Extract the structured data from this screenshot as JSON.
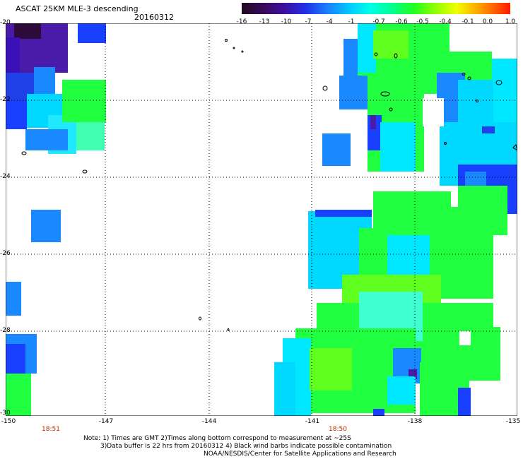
{
  "header": {
    "title": "ASCAT 25KM MLE-3 descending",
    "date": "20160312"
  },
  "colorbar": {
    "labels": [
      "-16",
      "-13",
      "-10",
      "-7",
      "-4",
      "-1",
      "-0.7",
      "-0.6",
      "-0.5",
      "-0.4",
      "-0.1",
      "0.0",
      "1.0"
    ],
    "colors": [
      "#2a0a2a",
      "#3a0a5e",
      "#3b10a8",
      "#2040e8",
      "#1a8cff",
      "#00d0ff",
      "#00ffe0",
      "#00ff80",
      "#30ff00",
      "#90ff00",
      "#f0ff00",
      "#ff9000",
      "#ff2000"
    ]
  },
  "axes": {
    "y_labels": [
      "-20",
      "-22",
      "-24",
      "-26",
      "-28",
      "-30"
    ],
    "x_labels": [
      "-150",
      "-147",
      "-144",
      "-141",
      "-138",
      "-135"
    ],
    "times": [
      "18:51",
      "18:50"
    ]
  },
  "note": {
    "line1": "Note: 1) Times are GMT 2)Times along bottom correspond to measurement at ~25S",
    "line2": "3)Data buffer is 22 hrs from 20160312 4) Black wind barbs indicate possible contamination",
    "line3": "NOAA/NESDIS/Center for Satellite Applications and Research"
  },
  "palette": {
    "deep_purple": "#2c0a3a",
    "purple": "#4a1aa8",
    "blue": "#1a40ff",
    "mid_blue": "#1a88ff",
    "cyan": "#00e8ff",
    "aqua": "#40ffd0",
    "green": "#20ff40",
    "lime": "#60ff20"
  }
}
